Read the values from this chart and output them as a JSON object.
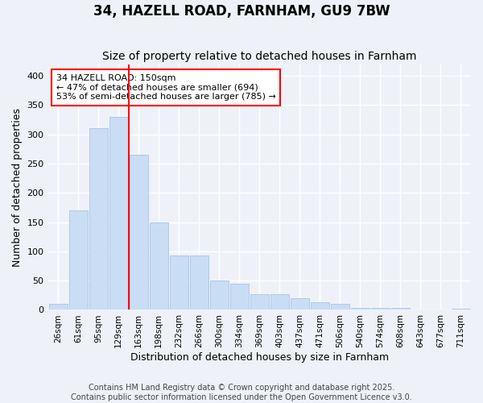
{
  "title": "34, HAZELL ROAD, FARNHAM, GU9 7BW",
  "subtitle": "Size of property relative to detached houses in Farnham",
  "xlabel": "Distribution of detached houses by size in Farnham",
  "ylabel": "Number of detached properties",
  "categories": [
    "26sqm",
    "61sqm",
    "95sqm",
    "129sqm",
    "163sqm",
    "198sqm",
    "232sqm",
    "266sqm",
    "300sqm",
    "334sqm",
    "369sqm",
    "403sqm",
    "437sqm",
    "471sqm",
    "506sqm",
    "540sqm",
    "574sqm",
    "608sqm",
    "643sqm",
    "677sqm",
    "711sqm"
  ],
  "values": [
    10,
    170,
    311,
    330,
    265,
    150,
    93,
    93,
    50,
    45,
    27,
    27,
    20,
    13,
    10,
    3,
    3,
    3,
    0,
    1,
    2
  ],
  "bar_color": "#c9ddf5",
  "bar_edge_color": "#a8c4e8",
  "red_line_x": 3.5,
  "annotation_line_label": "34 HAZELL ROAD: 150sqm\n← 47% of detached houses are smaller (694)\n53% of semi-detached houses are larger (785) →",
  "footnote": "Contains HM Land Registry data © Crown copyright and database right 2025.\nContains public sector information licensed under the Open Government Licence v3.0.",
  "ylim": [
    0,
    420
  ],
  "yticks": [
    0,
    50,
    100,
    150,
    200,
    250,
    300,
    350,
    400
  ],
  "background_color": "#eef2f8",
  "grid_color": "#ffffff",
  "title_fontsize": 12,
  "subtitle_fontsize": 10,
  "xlabel_fontsize": 9,
  "ylabel_fontsize": 9,
  "tick_fontsize": 7.5,
  "annot_fontsize": 8,
  "footnote_fontsize": 7
}
